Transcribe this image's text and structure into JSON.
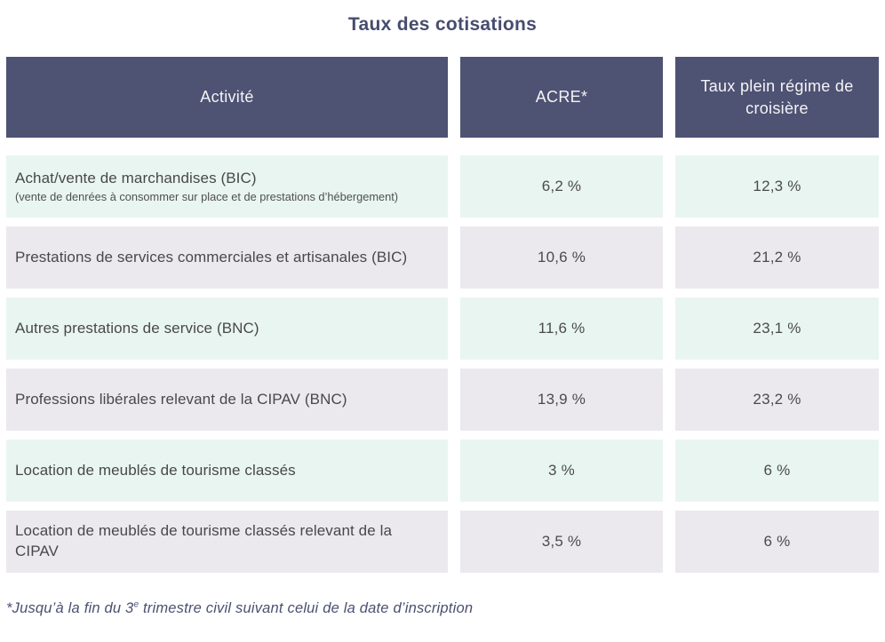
{
  "title": "Taux des cotisations",
  "table": {
    "headers": {
      "activity": "Activité",
      "acre": "ACRE*",
      "full_rate": "Taux plein régime de croisière"
    },
    "rows": [
      {
        "activity": "Achat/vente de marchandises (BIC)",
        "note": "(vente de denrées à consommer sur place et de prestations d’hébergement)",
        "acre": "6,2 %",
        "full_rate": "12,3 %"
      },
      {
        "activity": "Prestations de services commerciales et artisanales (BIC)",
        "acre": "10,6 %",
        "full_rate": "21,2 %"
      },
      {
        "activity": "Autres prestations de service (BNC)",
        "acre": "11,6 %",
        "full_rate": "23,1 %"
      },
      {
        "activity": "Professions libérales relevant de la CIPAV (BNC)",
        "acre": "13,9 %",
        "full_rate": "23,2 %"
      },
      {
        "activity": "Location de meublés de tourisme classés",
        "acre": "3 %",
        "full_rate": "6 %"
      },
      {
        "activity": "Location de meublés de tourisme classés relevant de la CIPAV",
        "acre": "3,5 %",
        "full_rate": "6 %"
      }
    ]
  },
  "footnote": {
    "prefix": "*Jusqu’à la  fin du 3",
    "superscript": "e",
    "suffix": "  trimestre civil suivant celui de la date d’inscription"
  },
  "colors": {
    "header_bg": "#4e5273",
    "row_green_bg": "#e9f5f1",
    "row_gray_bg": "#ebe9ee",
    "header_text": "#f5f4f6",
    "body_text": "#4b4b4d",
    "accent_text": "#474c6f"
  }
}
